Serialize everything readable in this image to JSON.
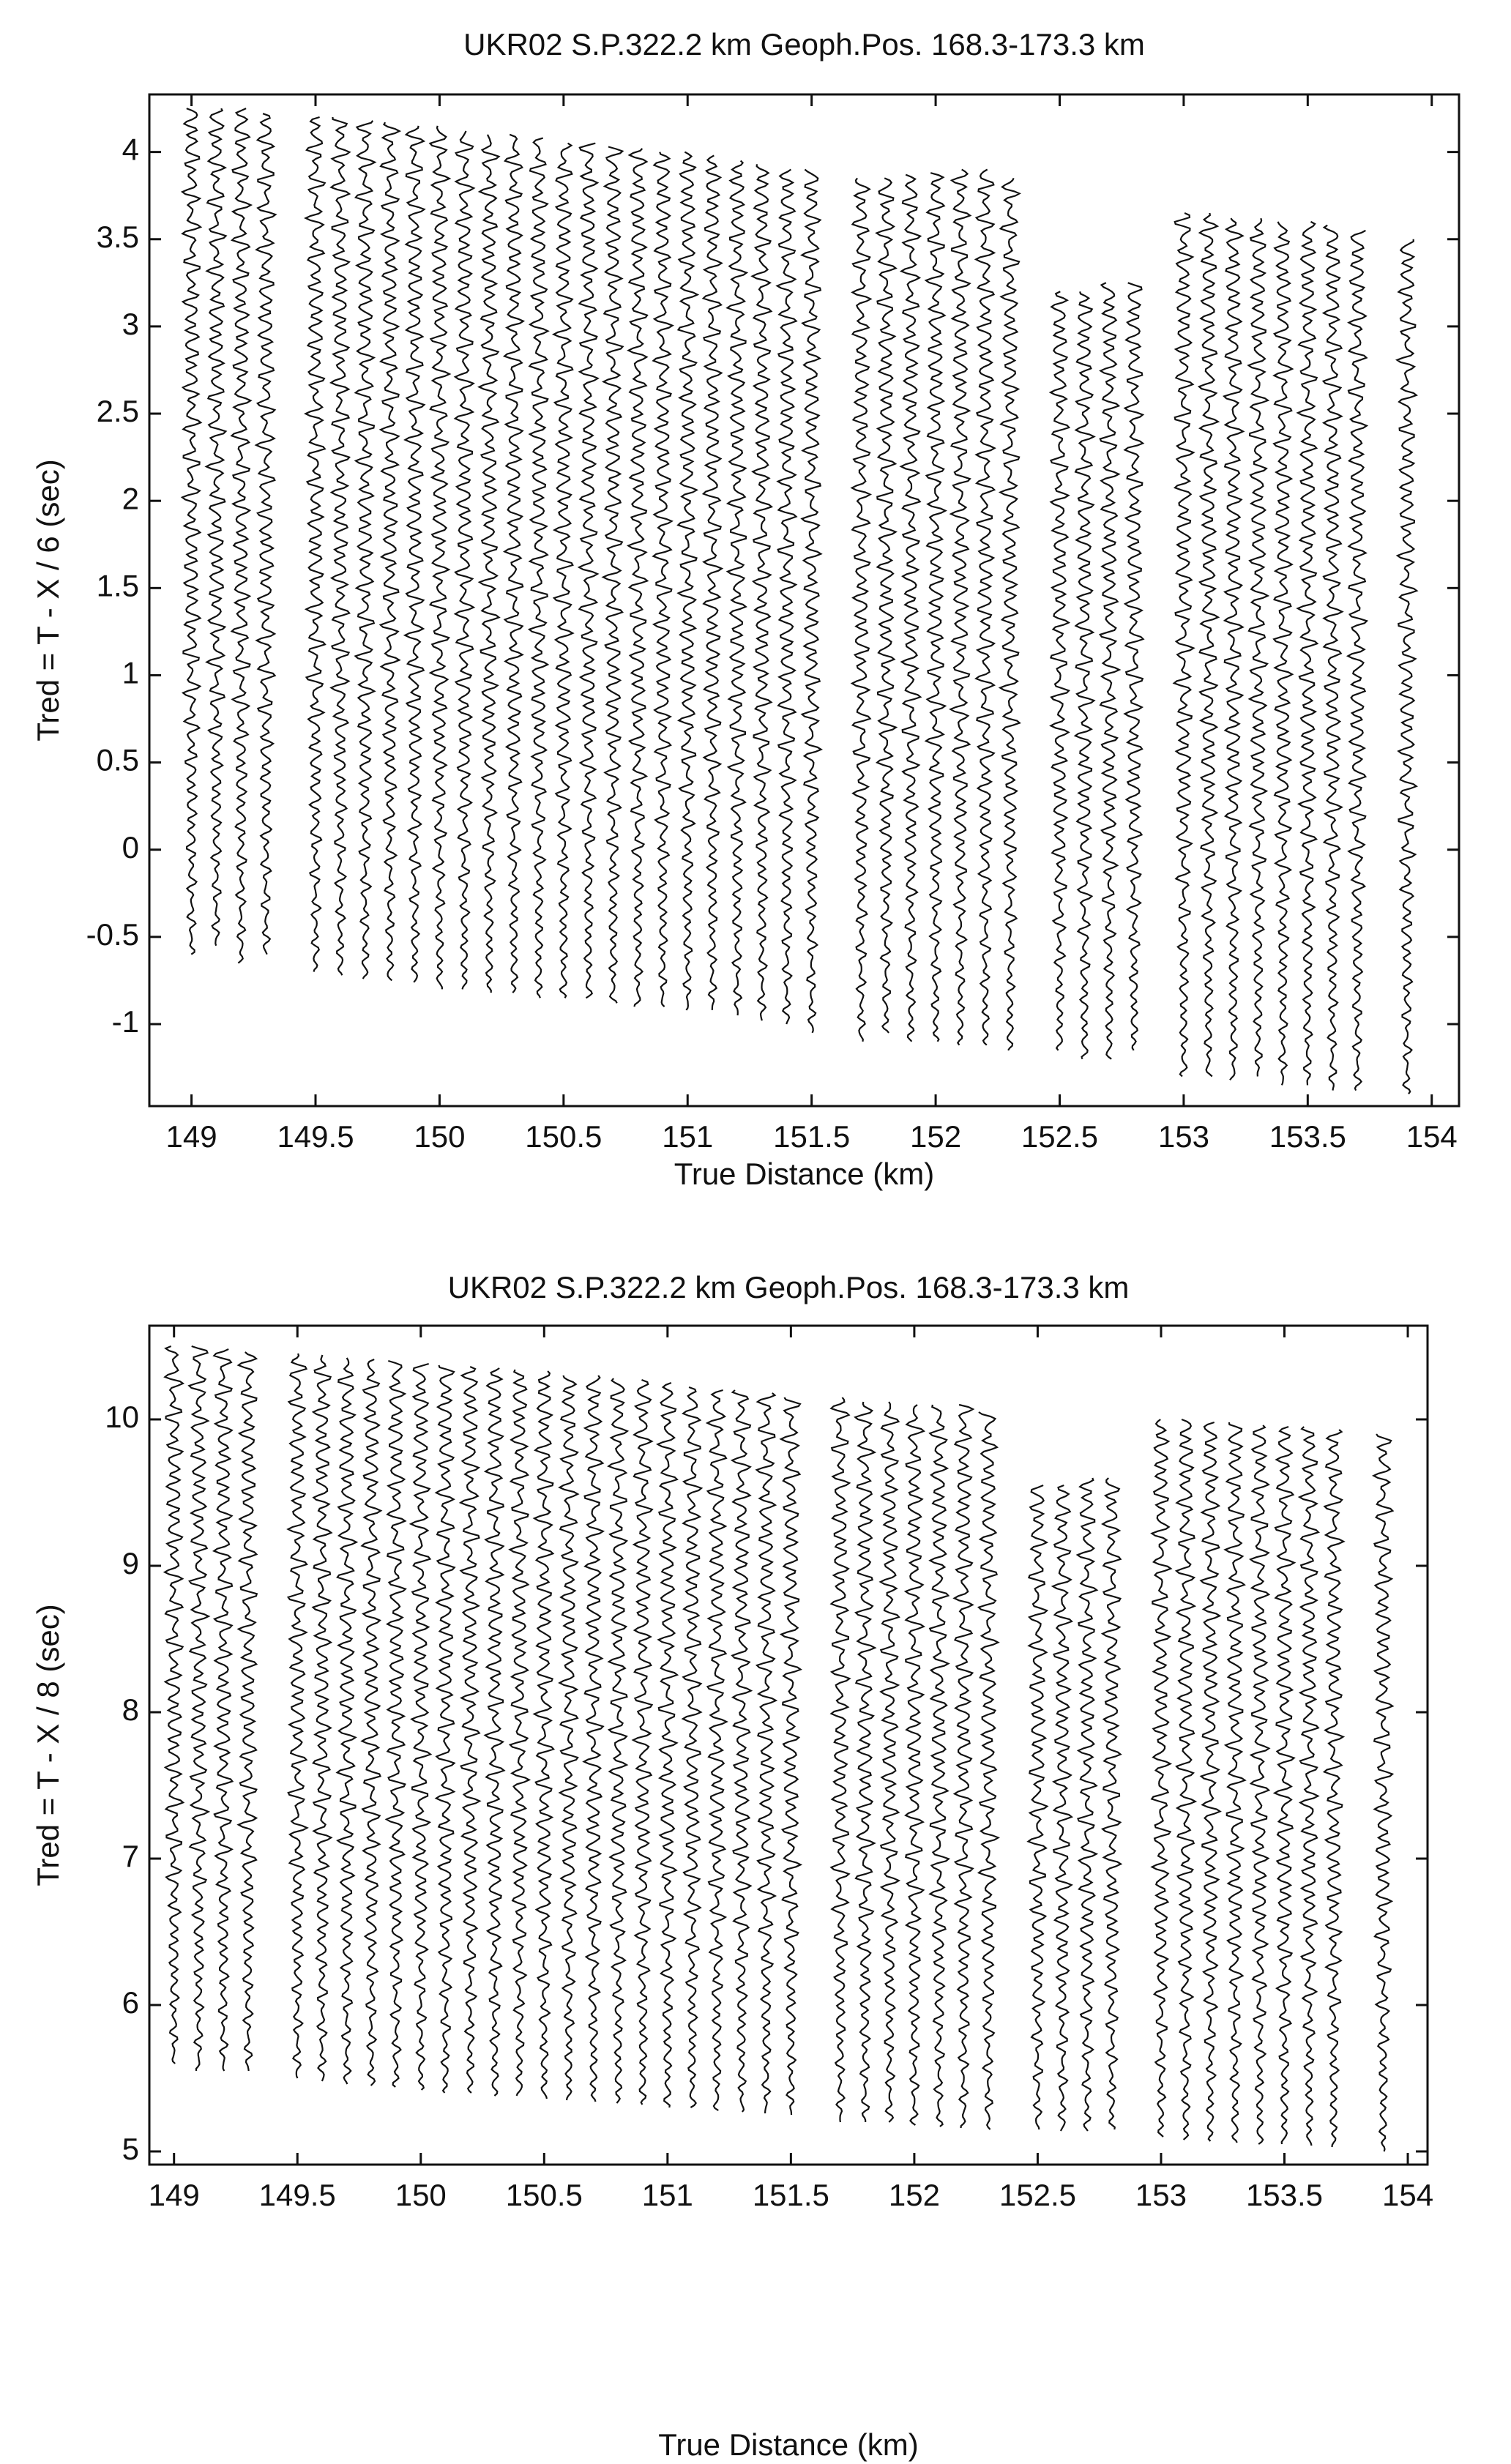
{
  "chart_data": [
    {
      "type": "seismic",
      "title": "UKR02 S.P.322.2 km Geoph.Pos. 168.3-173.3 km",
      "x_label": "True Distance (km)",
      "y_label": "Tred = T - X / 6 (sec)",
      "xlim": [
        148.83,
        154.11
      ],
      "ylim": [
        -1.47,
        4.33
      ],
      "xticks": [
        149,
        149.5,
        150,
        150.5,
        151,
        151.5,
        152,
        152.5,
        153,
        153.5,
        154
      ],
      "yticks": [
        -1,
        -0.5,
        0,
        0.5,
        1,
        1.5,
        2,
        2.5,
        3,
        3.5,
        4
      ],
      "color": "#111111",
      "trace_x": [
        149,
        149.1,
        149.2,
        149.3,
        149.5,
        149.6,
        149.7,
        149.8,
        149.9,
        150,
        150.1,
        150.2,
        150.3,
        150.4,
        150.5,
        150.6,
        150.7,
        150.8,
        150.9,
        151,
        151.1,
        151.2,
        151.3,
        151.4,
        151.5,
        151.7,
        151.8,
        151.9,
        152,
        152.1,
        152.2,
        152.3,
        152.5,
        152.6,
        152.7,
        152.8,
        153,
        153.1,
        153.2,
        153.3,
        153.4,
        153.5,
        153.6,
        153.7,
        153.9
      ],
      "trace_start": [
        -0.6,
        -0.55,
        -0.65,
        -0.6,
        -0.7,
        -0.72,
        -0.74,
        -0.75,
        -0.76,
        -0.8,
        -0.8,
        -0.82,
        -0.82,
        -0.85,
        -0.85,
        -0.85,
        -0.88,
        -0.9,
        -0.9,
        -0.92,
        -0.92,
        -0.95,
        -0.98,
        -1,
        -1.05,
        -1.1,
        -1.05,
        -1.1,
        -1.1,
        -1.12,
        -1.12,
        -1.15,
        -1.15,
        -1.2,
        -1.2,
        -1.15,
        -1.3,
        -1.3,
        -1.32,
        -1.3,
        -1.35,
        -1.35,
        -1.38,
        -1.38,
        -1.4
      ],
      "trace_end": [
        4.25,
        4.25,
        4.25,
        4.22,
        4.2,
        4.2,
        4.18,
        4.17,
        4.15,
        4.15,
        4.12,
        4.1,
        4.1,
        4.08,
        4.05,
        4.05,
        4.03,
        4.02,
        4,
        4,
        3.98,
        3.95,
        3.93,
        3.9,
        3.9,
        3.85,
        3.85,
        3.87,
        3.88,
        3.9,
        3.9,
        3.85,
        3.2,
        3.2,
        3.25,
        3.25,
        3.65,
        3.65,
        3.62,
        3.62,
        3.6,
        3.6,
        3.58,
        3.55,
        3.5
      ]
    },
    {
      "type": "seismic",
      "title": "UKR02 S.P.322.2 km Geoph.Pos. 168.3-173.3 km",
      "x_label": "True Distance (km)",
      "y_label": "Tred = T - X / 8 (sec)",
      "xlim": [
        148.9,
        154.08
      ],
      "ylim": [
        4.91,
        10.64
      ],
      "xticks": [
        149,
        149.5,
        150,
        150.5,
        151,
        151.5,
        152,
        152.5,
        153,
        153.5,
        154
      ],
      "yticks": [
        5,
        6,
        7,
        8,
        9,
        10
      ],
      "color": "#111111",
      "trace_x": [
        149,
        149.1,
        149.2,
        149.3,
        149.5,
        149.6,
        149.7,
        149.8,
        149.9,
        150,
        150.1,
        150.2,
        150.3,
        150.4,
        150.5,
        150.6,
        150.7,
        150.8,
        150.9,
        151,
        151.1,
        151.2,
        151.3,
        151.4,
        151.5,
        151.7,
        151.8,
        151.9,
        152,
        152.1,
        152.2,
        152.3,
        152.5,
        152.6,
        152.7,
        152.8,
        153,
        153.1,
        153.2,
        153.3,
        153.4,
        153.5,
        153.6,
        153.7,
        153.9
      ],
      "trace_start": [
        5.6,
        5.55,
        5.55,
        5.55,
        5.5,
        5.48,
        5.46,
        5.45,
        5.44,
        5.42,
        5.4,
        5.4,
        5.38,
        5.38,
        5.36,
        5.35,
        5.34,
        5.33,
        5.32,
        5.3,
        5.3,
        5.28,
        5.27,
        5.26,
        5.25,
        5.2,
        5.2,
        5.2,
        5.18,
        5.17,
        5.16,
        5.15,
        5.15,
        5.14,
        5.14,
        5.15,
        5.1,
        5.08,
        5.07,
        5.06,
        5.05,
        5.05,
        5.04,
        5.03,
        5.0
      ],
      "trace_end": [
        10.5,
        10.5,
        10.48,
        10.46,
        10.45,
        10.44,
        10.42,
        10.41,
        10.4,
        10.38,
        10.37,
        10.36,
        10.35,
        10.34,
        10.33,
        10.3,
        10.3,
        10.28,
        10.27,
        10.25,
        10.22,
        10.2,
        10.2,
        10.18,
        10.15,
        10.15,
        10.12,
        10.12,
        10.1,
        10.1,
        10.1,
        10.05,
        9.55,
        9.55,
        9.6,
        9.6,
        10,
        10,
        9.98,
        9.98,
        9.96,
        9.95,
        9.95,
        9.93,
        9.9
      ]
    }
  ]
}
